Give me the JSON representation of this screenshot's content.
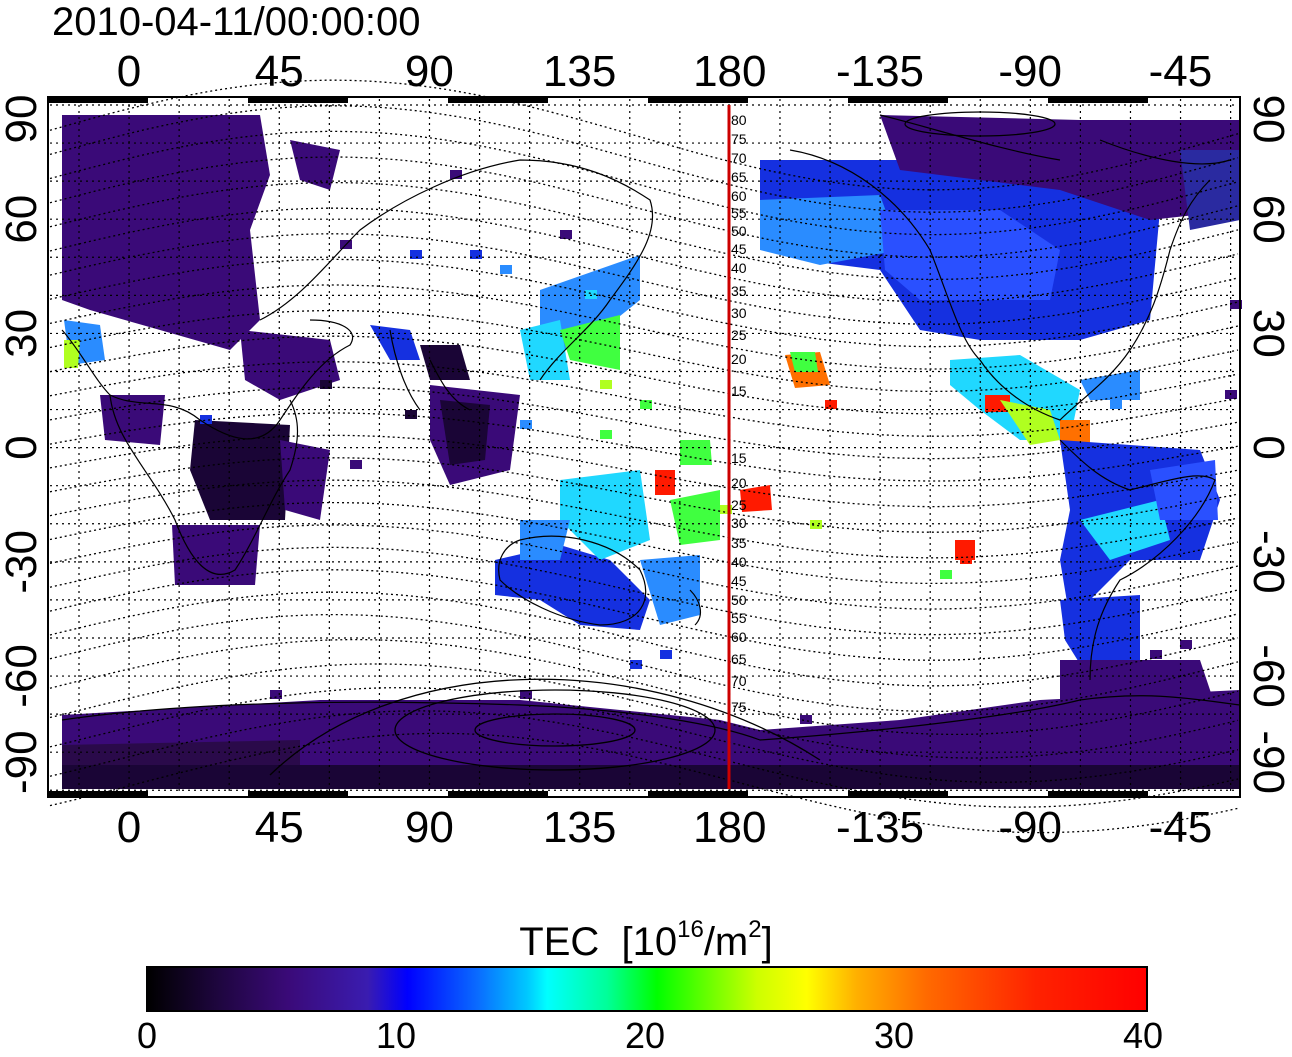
{
  "title": "2010-04-11/00:00:00",
  "map": {
    "lon_ticks": [
      "0",
      "45",
      "90",
      "135",
      "180",
      "-135",
      "-90",
      "-45"
    ],
    "lat_ticks": [
      "90",
      "60",
      "30",
      "0",
      "-30",
      "-60",
      "-90"
    ],
    "maglat_labels": [
      "80",
      "75",
      "70",
      "65",
      "60",
      "55",
      "50",
      "45",
      "40",
      "35",
      "30",
      "25",
      "20",
      "15",
      "15",
      "20",
      "25",
      "30",
      "35",
      "40",
      "45",
      "50",
      "55",
      "60",
      "65",
      "70",
      "75"
    ],
    "dateline_color": "#cc0000"
  },
  "legend": {
    "label": "TEC",
    "unit_prefix": "[10",
    "unit_exp": "16",
    "unit_mid": "/m",
    "unit_exp2": "2",
    "unit_suffix": "]",
    "ticks": [
      "0",
      "10",
      "20",
      "30",
      "40"
    ],
    "range": [
      0,
      40
    ],
    "colormap": [
      "#000000",
      "#3a0a78",
      "#0000ff",
      "#00ffff",
      "#00ff00",
      "#ffff00",
      "#ff6a00",
      "#ff0000"
    ]
  }
}
